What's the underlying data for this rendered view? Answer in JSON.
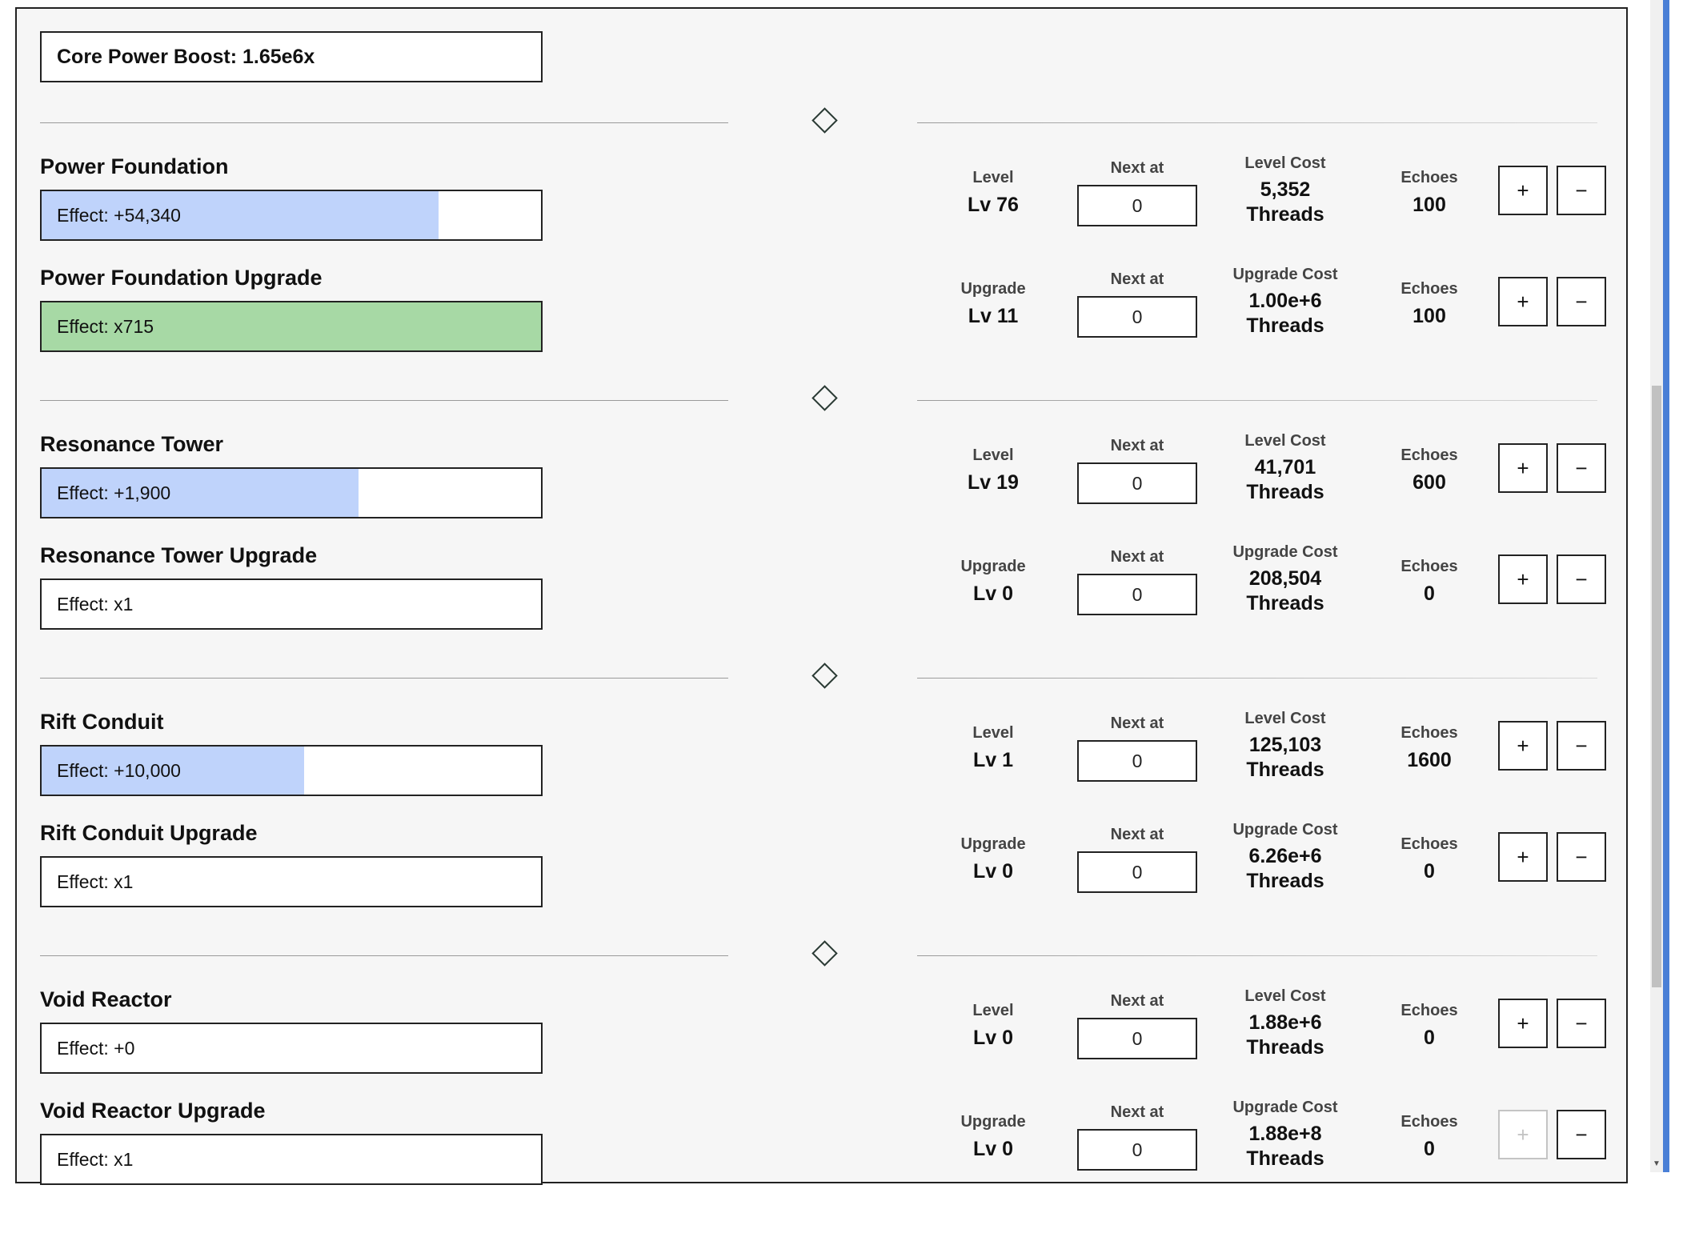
{
  "boost_label": "Core Power Boost: 1.65e6x",
  "labels": {
    "level": "Level",
    "upgrade": "Upgrade",
    "next_at": "Next at",
    "level_cost": "Level Cost",
    "upgrade_cost": "Upgrade Cost",
    "echoes": "Echoes",
    "plus": "+",
    "minus": "−"
  },
  "colors": {
    "level_fill": "#bfd3fb",
    "upgrade_fill": "#a7d9a5",
    "accent": "#4a7fd6"
  },
  "sections": [
    {
      "base": {
        "name": "Power Foundation",
        "effect": "Effect: +54,340",
        "progress": 0.795,
        "level": "Lv 76",
        "next_at": "0",
        "cost_value": "5,352",
        "cost_unit": "Threads",
        "echoes": "100",
        "plus_enabled": true
      },
      "upgrade": {
        "name": "Power Foundation Upgrade",
        "effect": "Effect: x715",
        "progress": 1.0,
        "level": "Lv 11",
        "next_at": "0",
        "cost_value": "1.00e+6",
        "cost_unit": "Threads",
        "echoes": "100",
        "plus_enabled": true
      }
    },
    {
      "base": {
        "name": "Resonance Tower",
        "effect": "Effect: +1,900",
        "progress": 0.635,
        "level": "Lv 19",
        "next_at": "0",
        "cost_value": "41,701",
        "cost_unit": "Threads",
        "echoes": "600",
        "plus_enabled": true
      },
      "upgrade": {
        "name": "Resonance Tower Upgrade",
        "effect": "Effect: x1",
        "progress": 0,
        "level": "Lv 0",
        "next_at": "0",
        "cost_value": "208,504",
        "cost_unit": "Threads",
        "echoes": "0",
        "plus_enabled": true
      }
    },
    {
      "base": {
        "name": "Rift Conduit",
        "effect": "Effect: +10,000",
        "progress": 0.525,
        "level": "Lv 1",
        "next_at": "0",
        "cost_value": "125,103",
        "cost_unit": "Threads",
        "echoes": "1600",
        "plus_enabled": true
      },
      "upgrade": {
        "name": "Rift Conduit Upgrade",
        "effect": "Effect: x1",
        "progress": 0,
        "level": "Lv 0",
        "next_at": "0",
        "cost_value": "6.26e+6",
        "cost_unit": "Threads",
        "echoes": "0",
        "plus_enabled": true
      }
    },
    {
      "base": {
        "name": "Void Reactor",
        "effect": "Effect: +0",
        "progress": 0,
        "level": "Lv 0",
        "next_at": "0",
        "cost_value": "1.88e+6",
        "cost_unit": "Threads",
        "echoes": "0",
        "plus_enabled": true
      },
      "upgrade": {
        "name": "Void Reactor Upgrade",
        "effect": "Effect: x1",
        "progress": 0,
        "level": "Lv 0",
        "next_at": "0",
        "cost_value": "1.88e+8",
        "cost_unit": "Threads",
        "echoes": "0",
        "plus_enabled": false
      }
    }
  ]
}
